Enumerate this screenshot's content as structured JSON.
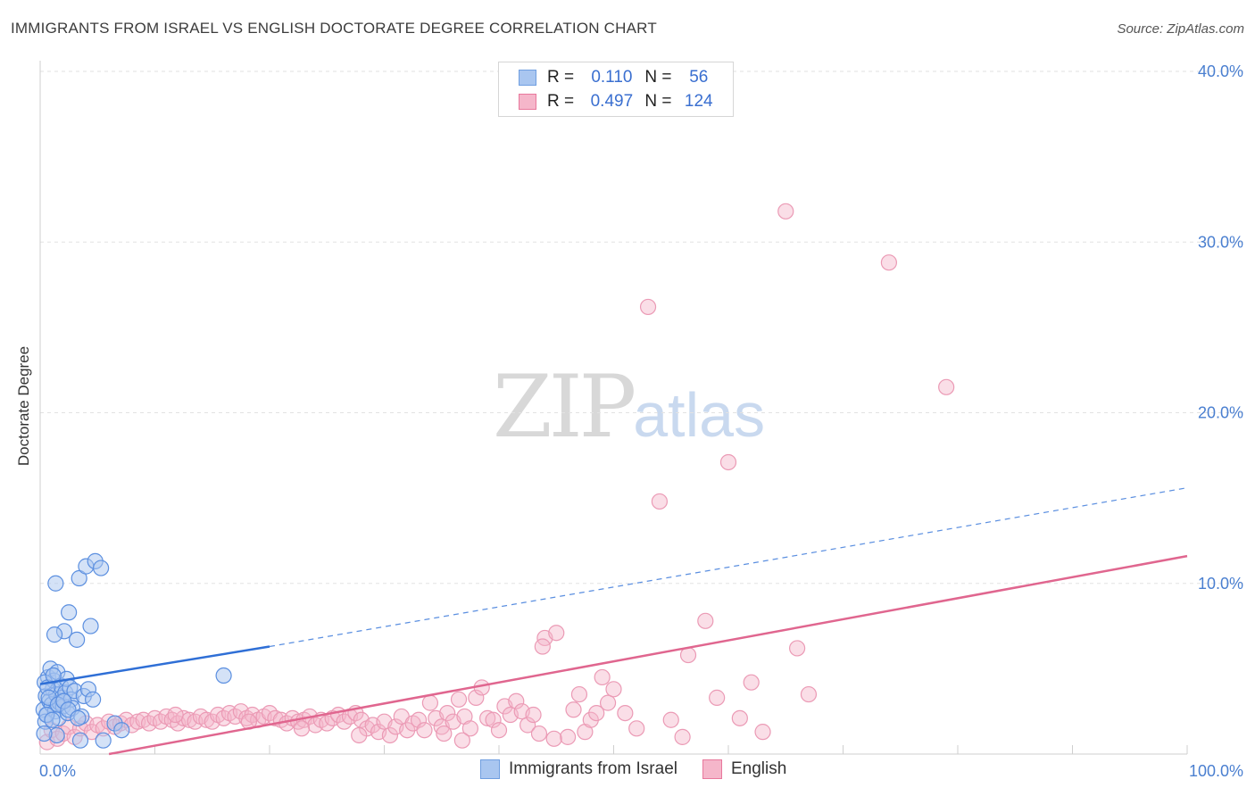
{
  "title": "IMMIGRANTS FROM ISRAEL VS ENGLISH DOCTORATE DEGREE CORRELATION CHART",
  "source": "Source: ZipAtlas.com",
  "watermark": {
    "zip": "ZIP",
    "atlas": "atlas"
  },
  "colors": {
    "blue": "#5b8fe0",
    "blue_fill": "#a9c6f0",
    "pink": "#e8789c",
    "pink_fill": "#f5b6ca",
    "axis_text": "#4a7fd0"
  },
  "legend": {
    "rows": [
      {
        "r_label": "R =",
        "r_value": "0.110",
        "n_label": "N =",
        "n_value": "56"
      },
      {
        "r_label": "R =",
        "r_value": "0.497",
        "n_label": "N =",
        "n_value": "124"
      }
    ]
  },
  "bottom_legend": [
    "Immigrants from Israel",
    "English"
  ],
  "chart_data": {
    "type": "scatter",
    "title": "IMMIGRANTS FROM ISRAEL VS ENGLISH DOCTORATE DEGREE CORRELATION CHART",
    "xlabel": "",
    "ylabel": "Doctorate Degree",
    "xlim": [
      0,
      100
    ],
    "ylim": [
      0,
      40
    ],
    "x_tick_labels": [
      "0.0%",
      "100.0%"
    ],
    "y_ticks": [
      10,
      20,
      30,
      40
    ],
    "y_tick_labels": [
      "10.0%",
      "20.0%",
      "30.0%",
      "40.0%"
    ],
    "series": [
      {
        "name": "Immigrants from Israel",
        "r": 0.11,
        "n": 56,
        "trend": {
          "x0": 0,
          "y0": 4.1,
          "x1": 20,
          "y1": 6.3,
          "dashed_to_x": 100,
          "dashed_to_y": 15.6
        },
        "points": [
          [
            0.3,
            2.6
          ],
          [
            0.5,
            3.4
          ],
          [
            0.6,
            2.3
          ],
          [
            0.7,
            4.5
          ],
          [
            0.8,
            3.1
          ],
          [
            0.9,
            5.0
          ],
          [
            1.0,
            2.9
          ],
          [
            1.1,
            3.8
          ],
          [
            1.2,
            4.3
          ],
          [
            1.3,
            2.5
          ],
          [
            1.4,
            3.5
          ],
          [
            1.5,
            4.8
          ],
          [
            1.6,
            2.1
          ],
          [
            1.7,
            3.0
          ],
          [
            1.8,
            4.0
          ],
          [
            1.9,
            3.3
          ],
          [
            2.0,
            2.8
          ],
          [
            2.1,
            7.2
          ],
          [
            2.2,
            3.6
          ],
          [
            2.3,
            4.4
          ],
          [
            2.4,
            2.4
          ],
          [
            2.5,
            8.3
          ],
          [
            2.6,
            3.9
          ],
          [
            2.7,
            3.2
          ],
          [
            2.8,
            2.7
          ],
          [
            3.0,
            3.7
          ],
          [
            3.2,
            6.7
          ],
          [
            3.4,
            10.3
          ],
          [
            3.6,
            2.2
          ],
          [
            3.8,
            3.4
          ],
          [
            4.0,
            11.0
          ],
          [
            4.2,
            3.8
          ],
          [
            4.4,
            7.5
          ],
          [
            4.6,
            3.2
          ],
          [
            4.8,
            11.3
          ],
          [
            5.3,
            10.9
          ],
          [
            5.5,
            0.8
          ],
          [
            6.5,
            1.8
          ],
          [
            7.1,
            1.4
          ],
          [
            16.0,
            4.6
          ],
          [
            1.25,
            7.0
          ],
          [
            1.35,
            10.0
          ],
          [
            0.4,
            4.2
          ],
          [
            0.45,
            1.9
          ],
          [
            0.55,
            2.3
          ],
          [
            0.65,
            3.9
          ],
          [
            0.75,
            3.3
          ],
          [
            1.05,
            2.0
          ],
          [
            1.15,
            4.6
          ],
          [
            1.45,
            1.1
          ],
          [
            1.55,
            2.9
          ],
          [
            2.05,
            3.1
          ],
          [
            2.45,
            2.6
          ],
          [
            3.3,
            2.1
          ],
          [
            3.5,
            0.8
          ],
          [
            0.35,
            1.2
          ]
        ]
      },
      {
        "name": "English",
        "r": 0.497,
        "n": 124,
        "trend": {
          "x0": 6,
          "y0": 0.0,
          "x1": 100,
          "y1": 11.6
        },
        "points": [
          [
            0.6,
            0.7
          ],
          [
            1.0,
            1.4
          ],
          [
            1.5,
            0.9
          ],
          [
            2.0,
            1.2
          ],
          [
            2.5,
            1.6
          ],
          [
            3.0,
            1.0
          ],
          [
            3.5,
            1.5
          ],
          [
            4.0,
            1.8
          ],
          [
            4.5,
            1.3
          ],
          [
            5.0,
            1.7
          ],
          [
            5.5,
            1.5
          ],
          [
            6.0,
            1.9
          ],
          [
            6.5,
            1.6
          ],
          [
            7.0,
            1.8
          ],
          [
            7.5,
            2.0
          ],
          [
            8.0,
            1.7
          ],
          [
            8.5,
            1.9
          ],
          [
            9.0,
            2.0
          ],
          [
            9.5,
            1.8
          ],
          [
            10.0,
            2.1
          ],
          [
            10.5,
            1.9
          ],
          [
            11.0,
            2.2
          ],
          [
            11.5,
            2.0
          ],
          [
            12.0,
            1.8
          ],
          [
            12.5,
            2.1
          ],
          [
            13.0,
            2.0
          ],
          [
            13.5,
            1.9
          ],
          [
            14.0,
            2.2
          ],
          [
            14.5,
            2.0
          ],
          [
            15.0,
            1.9
          ],
          [
            15.5,
            2.3
          ],
          [
            16.0,
            2.1
          ],
          [
            16.5,
            2.4
          ],
          [
            17.0,
            2.2
          ],
          [
            17.5,
            2.5
          ],
          [
            18.0,
            2.1
          ],
          [
            18.5,
            2.3
          ],
          [
            19.0,
            2.0
          ],
          [
            19.5,
            2.2
          ],
          [
            20.0,
            2.4
          ],
          [
            20.5,
            2.1
          ],
          [
            21.0,
            2.0
          ],
          [
            21.5,
            1.8
          ],
          [
            22.0,
            2.1
          ],
          [
            22.5,
            1.9
          ],
          [
            23.0,
            2.0
          ],
          [
            23.5,
            2.2
          ],
          [
            24.0,
            1.7
          ],
          [
            24.5,
            2.0
          ],
          [
            25.0,
            1.8
          ],
          [
            25.5,
            2.1
          ],
          [
            26.0,
            2.3
          ],
          [
            26.5,
            1.9
          ],
          [
            27.0,
            2.2
          ],
          [
            27.5,
            2.4
          ],
          [
            28.0,
            2.0
          ],
          [
            28.5,
            1.5
          ],
          [
            29.0,
            1.7
          ],
          [
            29.5,
            1.3
          ],
          [
            30.0,
            1.9
          ],
          [
            30.5,
            1.1
          ],
          [
            31.0,
            1.6
          ],
          [
            31.5,
            2.2
          ],
          [
            32.0,
            1.4
          ],
          [
            32.5,
            1.8
          ],
          [
            33.0,
            2.0
          ],
          [
            33.5,
            1.4
          ],
          [
            34.0,
            3.0
          ],
          [
            34.5,
            2.1
          ],
          [
            35.0,
            1.6
          ],
          [
            35.5,
            2.4
          ],
          [
            36.0,
            1.9
          ],
          [
            36.5,
            3.2
          ],
          [
            37.0,
            2.2
          ],
          [
            37.5,
            1.5
          ],
          [
            38.0,
            3.3
          ],
          [
            38.5,
            3.9
          ],
          [
            39.0,
            2.1
          ],
          [
            39.5,
            2.0
          ],
          [
            40.0,
            1.4
          ],
          [
            40.5,
            2.8
          ],
          [
            41.0,
            2.3
          ],
          [
            41.5,
            3.1
          ],
          [
            42.0,
            2.5
          ],
          [
            42.5,
            1.7
          ],
          [
            43.0,
            2.3
          ],
          [
            43.5,
            1.2
          ],
          [
            44.0,
            6.8
          ],
          [
            45.0,
            7.1
          ],
          [
            46.0,
            1.0
          ],
          [
            46.5,
            2.6
          ],
          [
            47.0,
            3.5
          ],
          [
            47.5,
            1.3
          ],
          [
            48.0,
            2.0
          ],
          [
            48.5,
            2.4
          ],
          [
            49.0,
            4.5
          ],
          [
            49.5,
            3.0
          ],
          [
            50.0,
            3.8
          ],
          [
            51.0,
            2.4
          ],
          [
            52.0,
            1.5
          ],
          [
            53.0,
            26.2
          ],
          [
            54.0,
            14.8
          ],
          [
            55.0,
            2.0
          ],
          [
            56.0,
            1.0
          ],
          [
            56.5,
            5.8
          ],
          [
            58.0,
            7.8
          ],
          [
            59.0,
            3.3
          ],
          [
            60.0,
            17.1
          ],
          [
            61.0,
            2.1
          ],
          [
            62.0,
            4.2
          ],
          [
            63.0,
            1.3
          ],
          [
            65.0,
            31.8
          ],
          [
            66.0,
            6.2
          ],
          [
            67.0,
            3.5
          ],
          [
            74.0,
            28.8
          ],
          [
            79.0,
            21.5
          ],
          [
            43.8,
            6.3
          ],
          [
            36.8,
            0.8
          ],
          [
            44.8,
            0.9
          ],
          [
            35.2,
            1.2
          ],
          [
            27.8,
            1.1
          ],
          [
            22.8,
            1.5
          ],
          [
            18.2,
            1.9
          ],
          [
            11.8,
            2.3
          ]
        ]
      }
    ]
  }
}
